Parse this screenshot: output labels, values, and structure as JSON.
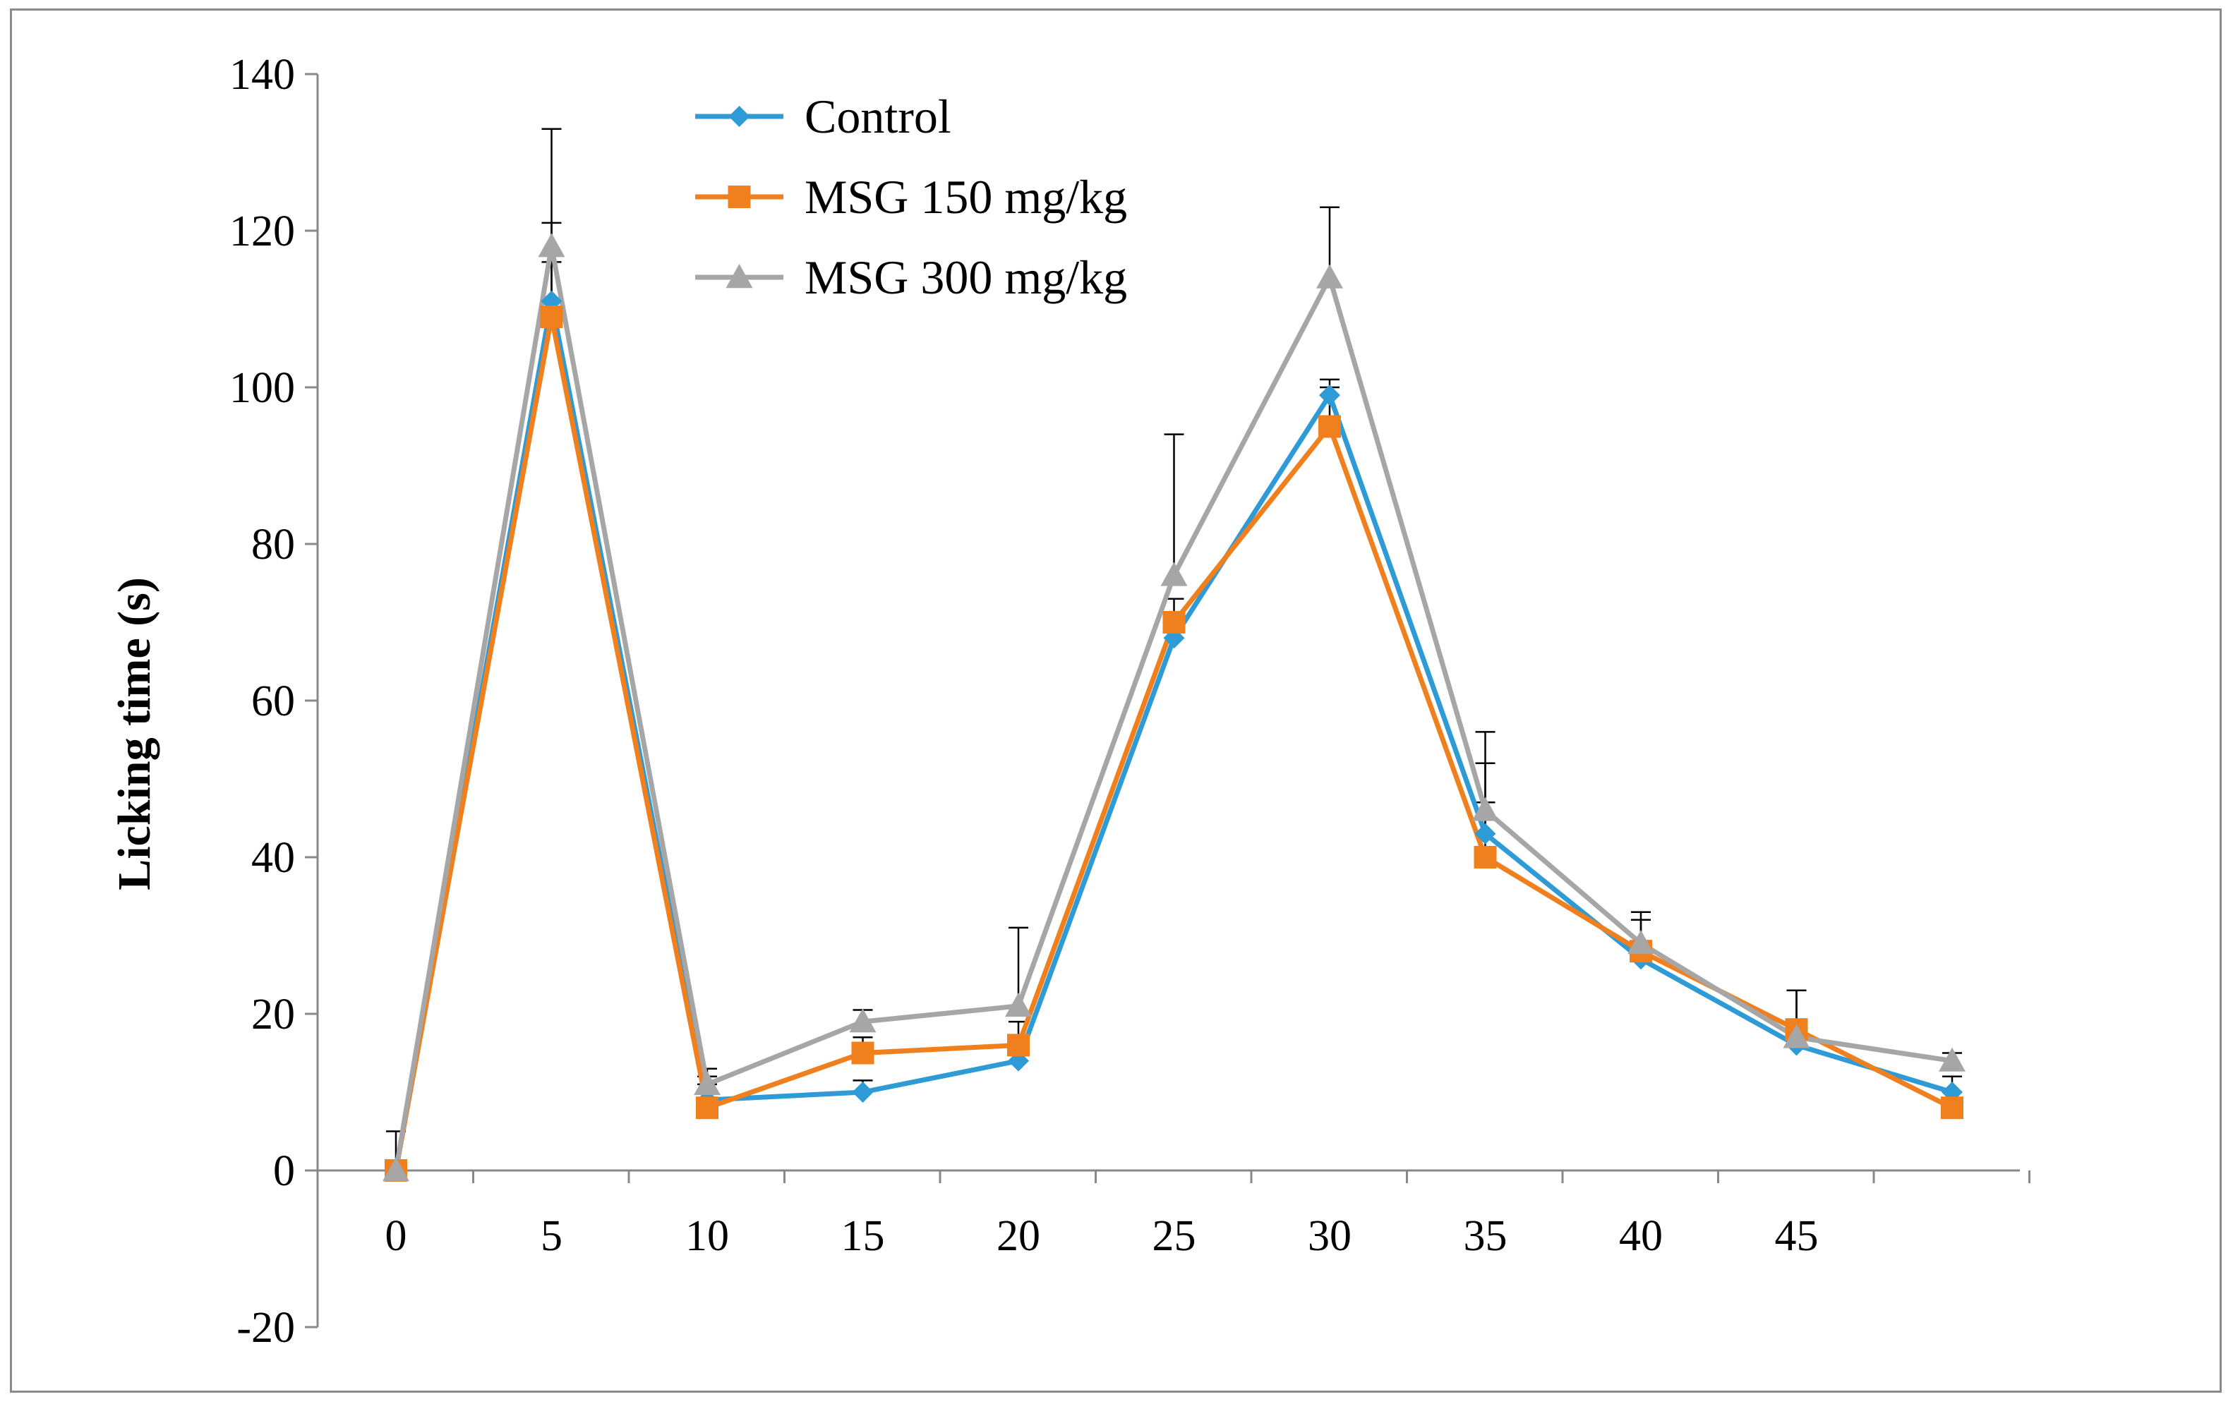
{
  "chart_data": {
    "type": "line",
    "title": "",
    "xlabel": "",
    "ylabel": "Licking time (s)",
    "ylim": [
      -20,
      140
    ],
    "yticks": [
      -20,
      0,
      20,
      40,
      60,
      80,
      100,
      120,
      140
    ],
    "x": [
      0,
      5,
      10,
      15,
      20,
      25,
      30,
      35,
      40,
      45,
      50
    ],
    "xtick_labels": [
      "0",
      "5",
      "10",
      "15",
      "20",
      "25",
      "30",
      "35",
      "40",
      "45"
    ],
    "grid": false,
    "legend": "top-left",
    "series": [
      {
        "name": "Control",
        "color": "#2E9AD6",
        "marker": "diamond",
        "values": [
          0,
          111,
          9,
          10,
          14,
          68,
          99,
          43,
          27,
          16,
          10
        ],
        "errors": [
          0,
          5,
          2,
          1.5,
          2,
          2,
          2,
          4,
          2,
          2,
          2
        ]
      },
      {
        "name": "MSG 150 mg/kg",
        "color": "#F07F1E",
        "marker": "square",
        "values": [
          0,
          109,
          8,
          15,
          16,
          70,
          95,
          40,
          28,
          18,
          8
        ],
        "errors": [
          0,
          12,
          4,
          2,
          3,
          3,
          5,
          12,
          4,
          5,
          2
        ]
      },
      {
        "name": "MSG 300 mg/kg",
        "color": "#A6A6A6",
        "marker": "triangle",
        "values": [
          0,
          118,
          11,
          19,
          21,
          76,
          114,
          46,
          29,
          17,
          14
        ],
        "errors": [
          5,
          15,
          2,
          1.5,
          10,
          18,
          9,
          10,
          4,
          6,
          1
        ]
      }
    ]
  }
}
